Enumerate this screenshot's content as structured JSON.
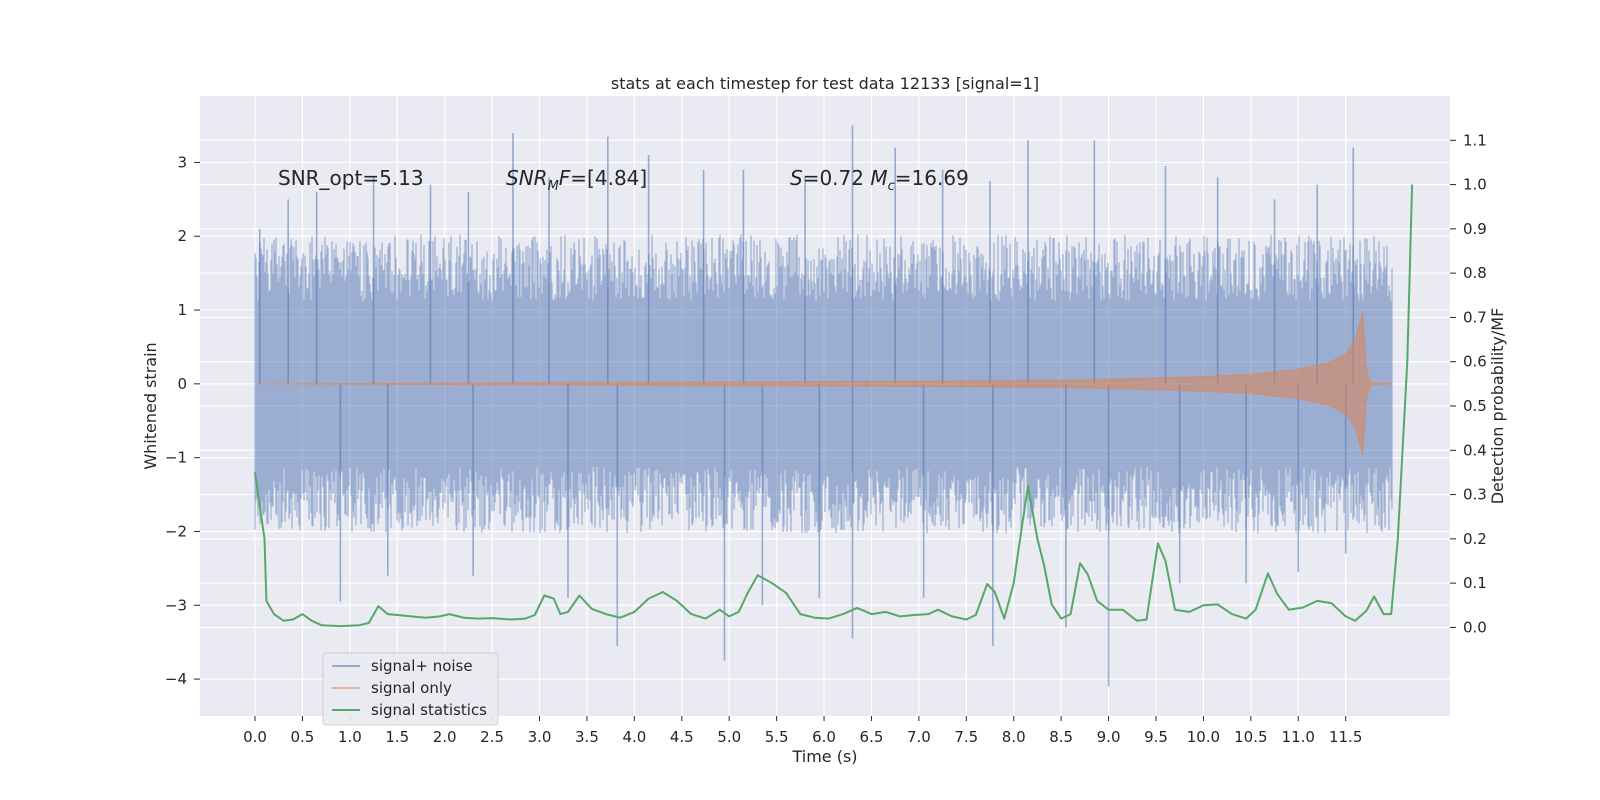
{
  "chart_data": {
    "type": "line",
    "title": "stats at each timestep for test data 12133 [signal=1]",
    "xlabel": "Time (s)",
    "ylabel_left": "Whitened strain",
    "ylabel_right": "Detection probability/MF",
    "xlim": [
      -0.58,
      12.6
    ],
    "ylim_left": [
      -4.5,
      3.9
    ],
    "ylim_right": [
      -0.2,
      1.2
    ],
    "x_ticks": [
      0.0,
      0.5,
      1.0,
      1.5,
      2.0,
      2.5,
      3.0,
      3.5,
      4.0,
      4.5,
      5.0,
      5.5,
      6.0,
      6.5,
      7.0,
      7.5,
      8.0,
      8.5,
      9.0,
      9.5,
      10.0,
      10.5,
      11.0,
      11.5
    ],
    "x_tick_labels": [
      "0.0",
      "0.5",
      "1.0",
      "1.5",
      "2.0",
      "2.5",
      "3.0",
      "3.5",
      "4.0",
      "4.5",
      "5.0",
      "5.5",
      "6.0",
      "6.5",
      "7.0",
      "7.5",
      "8.0",
      "8.5",
      "9.0",
      "9.5",
      "10.0",
      "10.5",
      "11.0",
      "11.5"
    ],
    "y_left_ticks": [
      3,
      2,
      1,
      0,
      -1,
      -2,
      -3,
      -4
    ],
    "y_left_tick_labels": [
      "3",
      "2",
      "1",
      "0",
      "−1",
      "−2",
      "−3",
      "−4"
    ],
    "y_right_ticks": [
      1.1,
      1.0,
      0.9,
      0.8,
      0.7,
      0.6,
      0.5,
      0.4,
      0.3,
      0.2,
      0.1,
      0.0
    ],
    "y_right_tick_labels": [
      "1.1",
      "1.0",
      "0.9",
      "0.8",
      "0.7",
      "0.6",
      "0.5",
      "0.4",
      "0.3",
      "0.2",
      "0.1",
      "0.0"
    ],
    "grid": true,
    "legend_position": "lower-left",
    "annotations": [
      {
        "text": "SNR_opt=5.13",
        "x": 0.2,
        "y": 2.8
      },
      {
        "text": "SNR_MF=[4.84]",
        "x": 2.6,
        "y": 2.8
      },
      {
        "text": "S=0.72   M_c=16.69",
        "x": 5.55,
        "y": 2.8
      }
    ],
    "series": [
      {
        "name": "signal+ noise",
        "axis": "left",
        "color": "#4c72b0",
        "kind": "noise_band",
        "x_range": [
          0.0,
          11.99
        ],
        "typical_envelope": 1.5,
        "extreme_peaks": [
          {
            "x": 0.05,
            "y": 2.1
          },
          {
            "x": 0.35,
            "y": 2.5
          },
          {
            "x": 0.65,
            "y": 2.6
          },
          {
            "x": 1.25,
            "y": 2.8
          },
          {
            "x": 1.85,
            "y": 2.7
          },
          {
            "x": 2.25,
            "y": 2.6
          },
          {
            "x": 2.72,
            "y": 3.4
          },
          {
            "x": 3.1,
            "y": 2.8
          },
          {
            "x": 3.72,
            "y": 3.35
          },
          {
            "x": 4.15,
            "y": 3.1
          },
          {
            "x": 4.73,
            "y": 2.9
          },
          {
            "x": 5.15,
            "y": 2.9
          },
          {
            "x": 5.8,
            "y": 2.8
          },
          {
            "x": 6.3,
            "y": 3.5
          },
          {
            "x": 6.75,
            "y": 3.2
          },
          {
            "x": 7.25,
            "y": 2.9
          },
          {
            "x": 7.75,
            "y": 2.75
          },
          {
            "x": 8.15,
            "y": 3.3
          },
          {
            "x": 8.85,
            "y": 3.3
          },
          {
            "x": 9.6,
            "y": 2.95
          },
          {
            "x": 10.15,
            "y": 2.8
          },
          {
            "x": 10.75,
            "y": 2.5
          },
          {
            "x": 11.2,
            "y": 2.7
          },
          {
            "x": 11.58,
            "y": 3.2
          },
          {
            "x": 0.9,
            "y": -2.95
          },
          {
            "x": 1.4,
            "y": -2.6
          },
          {
            "x": 2.3,
            "y": -2.6
          },
          {
            "x": 3.3,
            "y": -2.9
          },
          {
            "x": 3.82,
            "y": -3.55
          },
          {
            "x": 4.95,
            "y": -3.75
          },
          {
            "x": 5.35,
            "y": -3.0
          },
          {
            "x": 5.95,
            "y": -2.9
          },
          {
            "x": 6.3,
            "y": -3.45
          },
          {
            "x": 7.05,
            "y": -2.9
          },
          {
            "x": 7.78,
            "y": -3.55
          },
          {
            "x": 8.55,
            "y": -3.3
          },
          {
            "x": 9.0,
            "y": -4.1
          },
          {
            "x": 9.75,
            "y": -2.7
          },
          {
            "x": 10.45,
            "y": -2.7
          },
          {
            "x": 11.0,
            "y": -2.55
          },
          {
            "x": 11.5,
            "y": -2.3
          }
        ]
      },
      {
        "name": "signal only",
        "axis": "left",
        "color": "#dd8452",
        "kind": "chirp",
        "points": [
          [
            0.0,
            0.0
          ],
          [
            2.0,
            0.01
          ],
          [
            4.0,
            0.02
          ],
          [
            6.0,
            0.03
          ],
          [
            7.5,
            0.04
          ],
          [
            8.5,
            0.05
          ],
          [
            9.5,
            0.08
          ],
          [
            10.0,
            0.1
          ],
          [
            10.5,
            0.13
          ],
          [
            11.0,
            0.2
          ],
          [
            11.3,
            0.28
          ],
          [
            11.5,
            0.4
          ],
          [
            11.6,
            0.6
          ],
          [
            11.68,
            0.97
          ],
          [
            11.72,
            0.2
          ],
          [
            11.76,
            0.02
          ],
          [
            11.99,
            0.0
          ]
        ]
      },
      {
        "name": "signal statistics",
        "axis": "right",
        "color": "#55a868",
        "kind": "line",
        "points": [
          [
            0.0,
            0.35
          ],
          [
            0.1,
            0.2
          ],
          [
            0.12,
            0.06
          ],
          [
            0.2,
            0.03
          ],
          [
            0.3,
            0.015
          ],
          [
            0.4,
            0.018
          ],
          [
            0.5,
            0.03
          ],
          [
            0.6,
            0.015
          ],
          [
            0.7,
            0.005
          ],
          [
            0.9,
            0.003
          ],
          [
            1.1,
            0.005
          ],
          [
            1.2,
            0.01
          ],
          [
            1.3,
            0.048
          ],
          [
            1.4,
            0.03
          ],
          [
            1.5,
            0.028
          ],
          [
            1.65,
            0.025
          ],
          [
            1.8,
            0.022
          ],
          [
            1.95,
            0.025
          ],
          [
            2.05,
            0.03
          ],
          [
            2.2,
            0.022
          ],
          [
            2.35,
            0.02
          ],
          [
            2.5,
            0.021
          ],
          [
            2.7,
            0.018
          ],
          [
            2.85,
            0.02
          ],
          [
            2.95,
            0.028
          ],
          [
            3.05,
            0.072
          ],
          [
            3.15,
            0.065
          ],
          [
            3.22,
            0.03
          ],
          [
            3.3,
            0.035
          ],
          [
            3.42,
            0.072
          ],
          [
            3.55,
            0.042
          ],
          [
            3.7,
            0.03
          ],
          [
            3.85,
            0.022
          ],
          [
            4.0,
            0.035
          ],
          [
            4.15,
            0.065
          ],
          [
            4.3,
            0.08
          ],
          [
            4.45,
            0.06
          ],
          [
            4.6,
            0.03
          ],
          [
            4.75,
            0.02
          ],
          [
            4.9,
            0.04
          ],
          [
            5.0,
            0.025
          ],
          [
            5.1,
            0.035
          ],
          [
            5.2,
            0.08
          ],
          [
            5.3,
            0.118
          ],
          [
            5.45,
            0.1
          ],
          [
            5.6,
            0.078
          ],
          [
            5.75,
            0.03
          ],
          [
            5.9,
            0.022
          ],
          [
            6.05,
            0.02
          ],
          [
            6.2,
            0.03
          ],
          [
            6.35,
            0.044
          ],
          [
            6.5,
            0.03
          ],
          [
            6.65,
            0.035
          ],
          [
            6.8,
            0.025
          ],
          [
            6.95,
            0.028
          ],
          [
            7.1,
            0.03
          ],
          [
            7.2,
            0.04
          ],
          [
            7.35,
            0.025
          ],
          [
            7.5,
            0.018
          ],
          [
            7.6,
            0.028
          ],
          [
            7.72,
            0.098
          ],
          [
            7.8,
            0.08
          ],
          [
            7.9,
            0.02
          ],
          [
            8.0,
            0.1
          ],
          [
            8.05,
            0.175
          ],
          [
            8.15,
            0.32
          ],
          [
            8.25,
            0.2
          ],
          [
            8.32,
            0.14
          ],
          [
            8.4,
            0.052
          ],
          [
            8.5,
            0.02
          ],
          [
            8.6,
            0.03
          ],
          [
            8.7,
            0.145
          ],
          [
            8.78,
            0.12
          ],
          [
            8.88,
            0.06
          ],
          [
            9.0,
            0.04
          ],
          [
            9.15,
            0.04
          ],
          [
            9.3,
            0.015
          ],
          [
            9.4,
            0.018
          ],
          [
            9.52,
            0.19
          ],
          [
            9.6,
            0.15
          ],
          [
            9.7,
            0.04
          ],
          [
            9.85,
            0.035
          ],
          [
            10.0,
            0.05
          ],
          [
            10.15,
            0.052
          ],
          [
            10.3,
            0.03
          ],
          [
            10.45,
            0.02
          ],
          [
            10.55,
            0.04
          ],
          [
            10.68,
            0.122
          ],
          [
            10.78,
            0.075
          ],
          [
            10.9,
            0.04
          ],
          [
            11.05,
            0.045
          ],
          [
            11.2,
            0.06
          ],
          [
            11.35,
            0.055
          ],
          [
            11.5,
            0.025
          ],
          [
            11.6,
            0.015
          ],
          [
            11.72,
            0.038
          ],
          [
            11.8,
            0.07
          ],
          [
            11.9,
            0.03
          ],
          [
            11.98,
            0.03
          ],
          [
            12.05,
            0.2
          ],
          [
            12.15,
            0.6
          ],
          [
            12.2,
            1.0
          ]
        ]
      }
    ]
  },
  "colors": {
    "plot_bg": "#eaeaf2",
    "grid": "#ffffff",
    "noise": "#4c72b0",
    "signal": "#dd8452",
    "stats": "#55a868"
  }
}
